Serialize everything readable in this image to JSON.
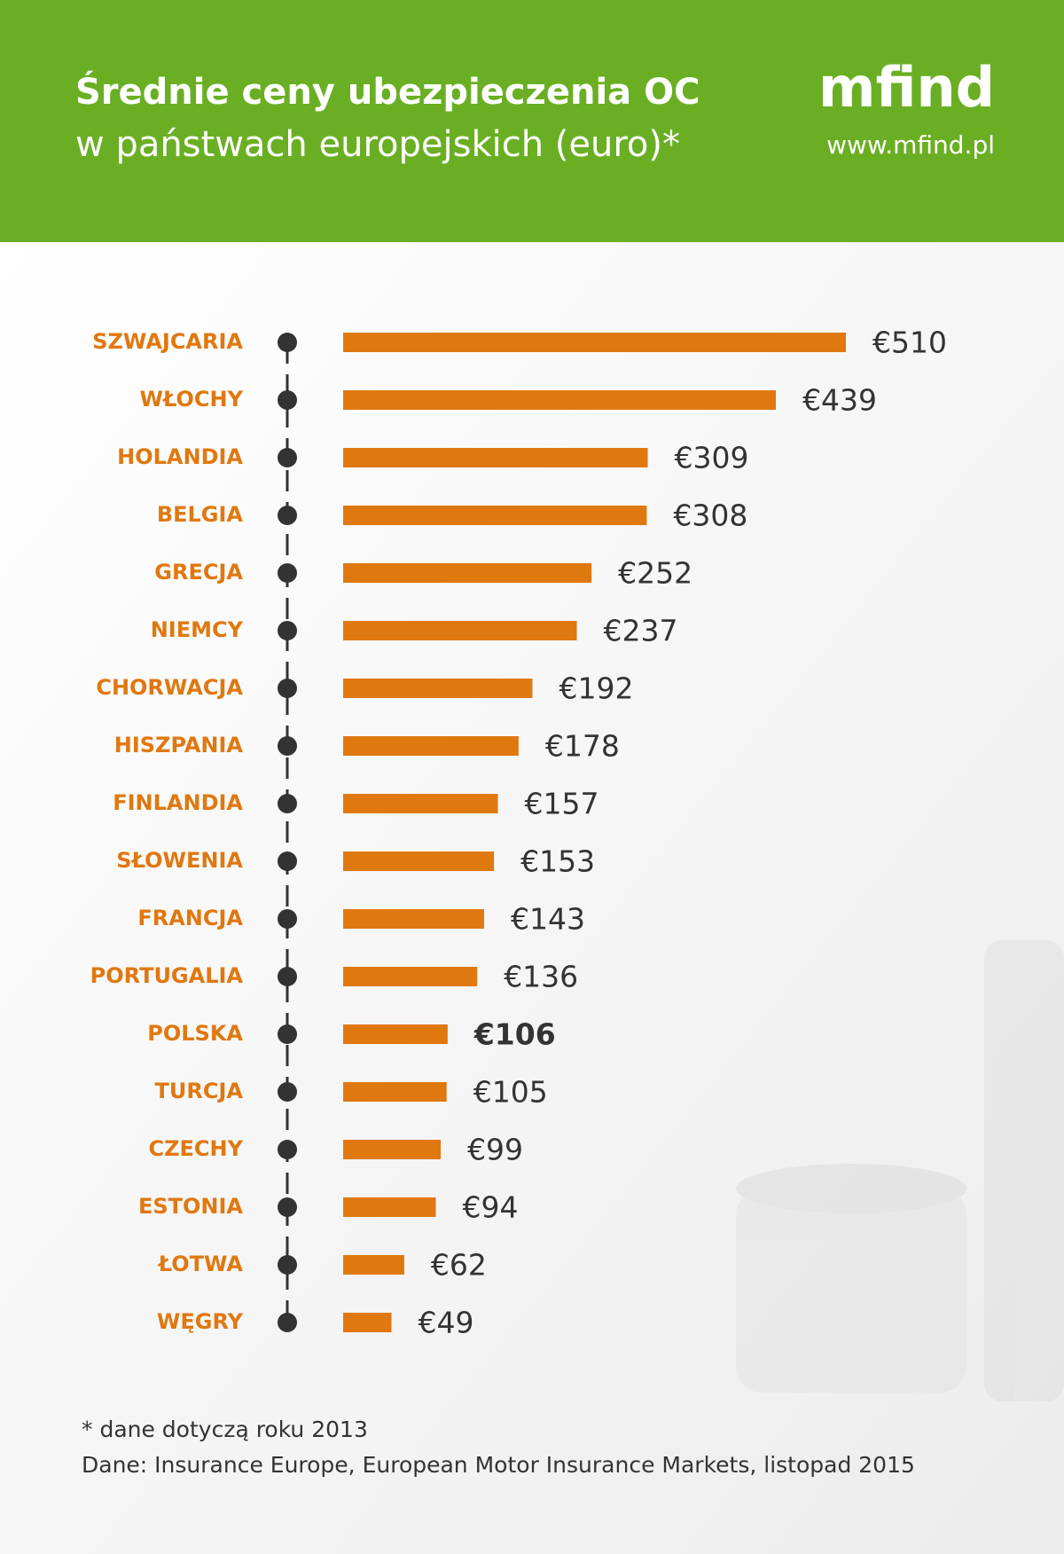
{
  "chart_data": {
    "type": "bar",
    "orientation": "horizontal",
    "title": "Średnie ceny ubezpieczenia OC",
    "subtitle": "w państwach europejskich (euro)*",
    "brand": "mfind",
    "url": "www.mfind.pl",
    "categories": [
      "SZWAJCARIA",
      "WŁOCHY",
      "HOLANDIA",
      "BELGIA",
      "GRECJA",
      "NIEMCY",
      "CHORWACJA",
      "HISZPANIA",
      "FINLANDIA",
      "SŁOWENIA",
      "FRANCJA",
      "PORTUGALIA",
      "POLSKA",
      "TURCJA",
      "CZECHY",
      "ESTONIA",
      "ŁOTWA",
      "WĘGRY"
    ],
    "values": [
      510,
      439,
      309,
      308,
      252,
      237,
      192,
      178,
      157,
      153,
      143,
      136,
      106,
      105,
      99,
      94,
      62,
      49
    ],
    "value_labels": [
      "€510",
      "€439",
      "€309",
      "€308",
      "€252",
      "€237",
      "€192",
      "€178",
      "€157",
      "€153",
      "€143",
      "€136",
      "€106",
      "€105",
      "€99",
      "€94",
      "€62",
      "€49"
    ],
    "color": "#e07810",
    "highlight": "POLSKA",
    "notes": [
      "* dane dotyczą roku 2013",
      "Dane: Insurance Europe, European Motor Insurance Markets, listopad 2015"
    ]
  }
}
